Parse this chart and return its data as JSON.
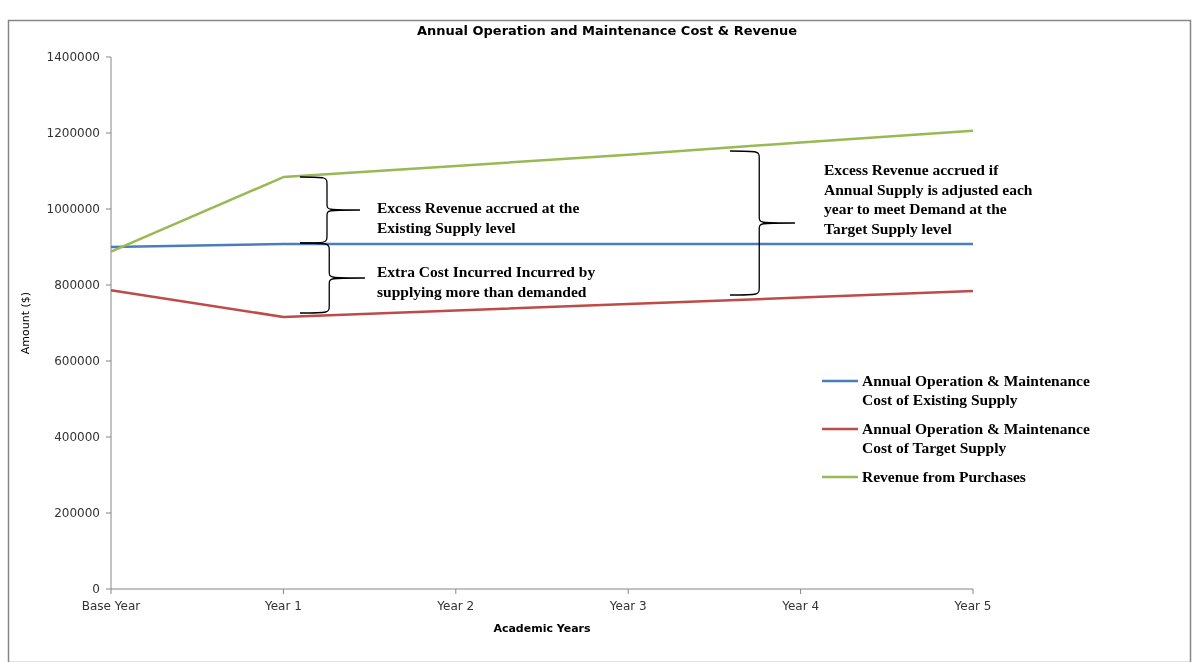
{
  "chart_data": {
    "type": "line",
    "title": "Annual Operation and Maintenance Cost & Revenue",
    "xlabel": "Academic Years",
    "ylabel": "Amount ($)",
    "categories": [
      "Base Year",
      "Year 1",
      "Year 2",
      "Year 3",
      "Year 4",
      "Year 5"
    ],
    "series": [
      {
        "name": "Annual Operation & Maintenance Cost of Existing Supply",
        "color": "#4a7ebb",
        "values": [
          900000,
          908000,
          908000,
          908000,
          908000,
          908000
        ]
      },
      {
        "name": "Annual Operation & Maintenance Cost of Target Supply",
        "color": "#be4b48",
        "values": [
          786000,
          716000,
          733000,
          750000,
          767000,
          784000
        ]
      },
      {
        "name": "Revenue from Purchases",
        "color": "#98b954",
        "values": [
          888000,
          1084000,
          1113000,
          1143000,
          1175000,
          1206000
        ]
      }
    ],
    "ylim": [
      0,
      1400000
    ],
    "yticks": [
      0,
      200000,
      400000,
      600000,
      800000,
      1000000,
      1200000,
      1400000
    ],
    "legend": "right",
    "grid": false,
    "annotations": [
      "Excess Revenue  accrued at the Existing Supply level",
      "Extra Cost Incurred Incurred  by supplying more than demanded",
      "Excess Revenue  accrued if Annual Supply is adjusted each year to meet  Demand at the Target Supply level"
    ]
  }
}
